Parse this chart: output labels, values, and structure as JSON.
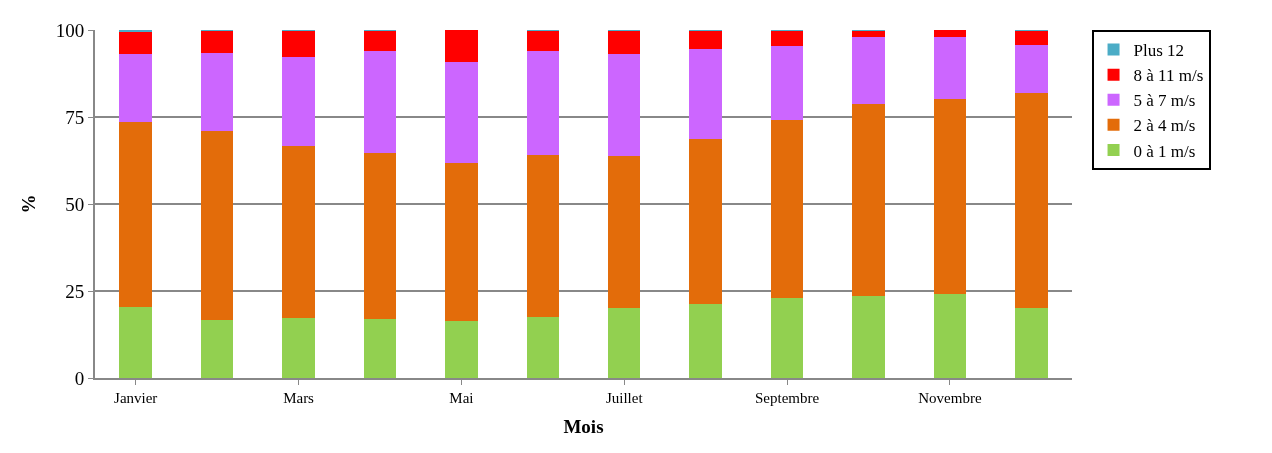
{
  "chart_data": {
    "type": "bar",
    "stacked": true,
    "xlabel": "Mois",
    "ylabel": "%",
    "categories": [
      "Janvier",
      null,
      "Mars",
      null,
      "Mai",
      null,
      "Juillet",
      null,
      "Septembre",
      null,
      "Novembre",
      null
    ],
    "series": [
      {
        "name": "0 à 1 m/s",
        "color": "#92d050",
        "values": [
          20.3,
          16.6,
          17.2,
          16.9,
          16.3,
          17.5,
          20.2,
          21.3,
          23.0,
          23.5,
          24.0,
          20.0
        ]
      },
      {
        "name": "2 à 4 m/s",
        "color": "#e36c0a",
        "values": [
          53.4,
          54.3,
          49.4,
          47.8,
          45.6,
          46.7,
          43.5,
          47.5,
          51.0,
          55.1,
          56.2,
          61.9
        ]
      },
      {
        "name": "5 à 7 m/s",
        "color": "#cc66ff",
        "values": [
          19.5,
          22.6,
          25.7,
          29.3,
          28.9,
          29.8,
          29.5,
          25.7,
          21.5,
          19.3,
          17.9,
          13.8
        ]
      },
      {
        "name": "8 à 11 m/s",
        "color": "#ff0000",
        "values": [
          6.3,
          6.3,
          7.5,
          5.8,
          9.2,
          5.8,
          6.6,
          5.4,
          4.4,
          2.0,
          1.9,
          4.1
        ]
      },
      {
        "name": "Plus 12",
        "color": "#4bacc6",
        "values": [
          0.5,
          0.2,
          0.2,
          0.2,
          0,
          0.2,
          0.2,
          0.1,
          0.1,
          0.1,
          0,
          0.2
        ]
      }
    ],
    "ylim": [
      0,
      100
    ],
    "yticks": [
      0,
      25,
      50,
      75,
      100
    ],
    "grid": "y",
    "legend": "right"
  }
}
